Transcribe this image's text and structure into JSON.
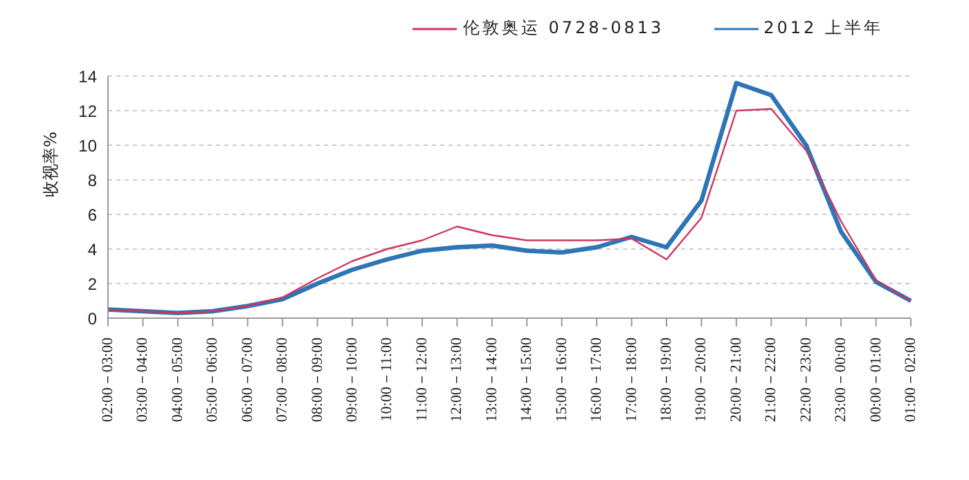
{
  "chart_data": {
    "type": "line",
    "ylabel": "收视率%",
    "categories": [
      "02:00－03:00",
      "03:00－04:00",
      "04:00－05:00",
      "05:00－06:00",
      "06:00－07:00",
      "07:00－08:00",
      "08:00－09:00",
      "09:00－10:00",
      "10:00－11:00",
      "11:00－12:00",
      "12:00－13:00",
      "13:00－14:00",
      "14:00－15:00",
      "15:00－16:00",
      "16:00－17:00",
      "17:00－18:00",
      "18:00－19:00",
      "19:00－20:00",
      "20:00－21:00",
      "21:00－22:00",
      "22:00－23:00",
      "23:00－00:00",
      "00:00－01:00",
      "01:00－02:00"
    ],
    "series": [
      {
        "name": "伦敦奥运 0728-0813",
        "color": "#d0345f",
        "values": [
          0.5,
          0.4,
          0.3,
          0.4,
          0.7,
          1.2,
          2.3,
          3.3,
          4.0,
          4.5,
          5.3,
          4.8,
          4.5,
          4.5,
          4.5,
          4.6,
          3.4,
          5.8,
          12.0,
          12.1,
          9.7,
          5.6,
          2.2,
          1.0
        ]
      },
      {
        "name": "2012 上半年",
        "color": "#2e75b6",
        "values": [
          0.5,
          0.4,
          0.3,
          0.4,
          0.7,
          1.1,
          2.0,
          2.8,
          3.4,
          3.9,
          4.1,
          4.2,
          3.9,
          3.8,
          4.1,
          4.7,
          4.1,
          6.8,
          13.6,
          12.9,
          10.0,
          5.0,
          2.1,
          1.0
        ]
      }
    ],
    "ylim": [
      0,
      14
    ],
    "yticks": [
      0,
      2,
      4,
      6,
      8,
      10,
      12,
      14
    ],
    "grid": "y",
    "legend": "top right",
    "marker": "none",
    "line_style": "solid"
  }
}
